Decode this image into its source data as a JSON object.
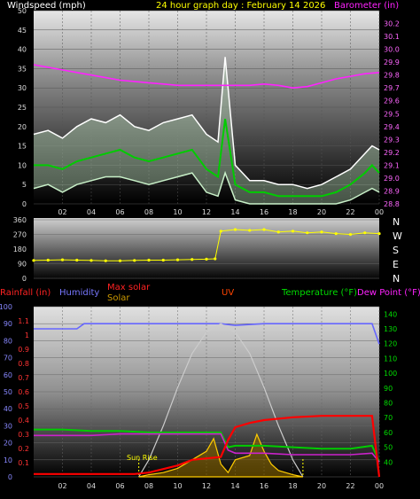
{
  "title": "24 hour graph day : February 14 2026",
  "header": {
    "windspeed_label": "Windspeed (mph)",
    "barometer_label": "Barometer (in)"
  },
  "direction_labels": [
    "N",
    "W",
    "S",
    "E",
    "N"
  ],
  "bottom_header": {
    "rainfall": "Rainfall (in)",
    "humidity": "Humidity",
    "max_solar": "Max solar",
    "solar": "Solar",
    "uv": "UV",
    "temperature": "Temperature (°F)",
    "dewpoint": "Dew Point (°F)"
  },
  "annotation": {
    "sunrise": "Sun Rise"
  },
  "colors": {
    "windspeed": "#ffffff",
    "gust_band": "#c8f0c8",
    "avg_wind": "#00cc00",
    "barometer": "#ff22ff",
    "direction": "#ffff00",
    "humidity": "#6666ff",
    "max_solar": "#cccccc",
    "solar": "#ffcc00",
    "rainfall": "#ff0000",
    "temperature": "#00cc00",
    "dewpoint": "#cc22cc",
    "title": "#ffff00"
  },
  "chart_data": [
    {
      "type": "line",
      "name": "wind_and_barometer",
      "x_ticks": [
        "02",
        "04",
        "06",
        "08",
        "10",
        "12",
        "14",
        "16",
        "18",
        "20",
        "22",
        "00"
      ],
      "x_range_hours": [
        0,
        24
      ],
      "y_left": {
        "label": "Windspeed (mph)",
        "ticks": [
          0,
          5,
          10,
          15,
          20,
          25,
          30,
          35,
          40,
          45,
          50
        ],
        "range": [
          0,
          50
        ]
      },
      "y_right": {
        "label": "Barometer (in)",
        "ticks": [
          28.8,
          28.9,
          29.0,
          29.1,
          29.2,
          29.3,
          29.4,
          29.5,
          29.6,
          29.7,
          29.8,
          29.9,
          30.0,
          30.1,
          30.2
        ],
        "range": [
          28.8,
          30.3
        ]
      },
      "series": [
        {
          "name": "Windspeed max",
          "x": [
            0,
            1,
            2,
            3,
            4,
            5,
            6,
            7,
            8,
            9,
            10,
            11,
            12,
            12.8,
            13.3,
            14,
            15,
            16,
            17,
            18,
            19,
            20,
            21,
            22,
            23,
            23.5,
            24
          ],
          "values": [
            18,
            19,
            17,
            20,
            22,
            21,
            23,
            20,
            19,
            21,
            22,
            23,
            18,
            16,
            38,
            10,
            6,
            6,
            5,
            5,
            4,
            5,
            7,
            9,
            13,
            15,
            14
          ]
        },
        {
          "name": "Windspeed avg",
          "x": [
            0,
            1,
            2,
            3,
            4,
            5,
            6,
            7,
            8,
            9,
            10,
            11,
            12,
            12.8,
            13.3,
            14,
            15,
            16,
            17,
            18,
            19,
            20,
            21,
            22,
            23,
            23.5,
            24
          ],
          "values": [
            10,
            10,
            9,
            11,
            12,
            13,
            14,
            12,
            11,
            12,
            13,
            14,
            9,
            7,
            22,
            5,
            3,
            3,
            2,
            2,
            2,
            2,
            3,
            5,
            8,
            10,
            8
          ]
        },
        {
          "name": "Windspeed min",
          "x": [
            0,
            1,
            2,
            3,
            4,
            5,
            6,
            7,
            8,
            9,
            10,
            11,
            12,
            12.8,
            13.3,
            14,
            15,
            16,
            17,
            18,
            19,
            20,
            21,
            22,
            23,
            23.5,
            24
          ],
          "values": [
            4,
            5,
            3,
            5,
            6,
            7,
            7,
            6,
            5,
            6,
            7,
            8,
            3,
            2,
            8,
            1,
            0,
            0,
            0,
            0,
            0,
            0,
            0,
            1,
            3,
            4,
            3
          ]
        },
        {
          "name": "Barometer",
          "x": [
            0,
            1,
            2,
            3,
            4,
            5,
            6,
            7,
            8,
            9,
            10,
            11,
            12,
            13,
            14,
            15,
            16,
            17,
            18,
            19,
            20,
            21,
            22,
            23,
            24
          ],
          "values": [
            29.88,
            29.86,
            29.84,
            29.82,
            29.8,
            29.78,
            29.76,
            29.75,
            29.74,
            29.73,
            29.72,
            29.72,
            29.72,
            29.72,
            29.72,
            29.72,
            29.73,
            29.72,
            29.7,
            29.71,
            29.74,
            29.77,
            29.79,
            29.81,
            29.82
          ]
        }
      ]
    },
    {
      "type": "scatter",
      "name": "wind_direction",
      "y_ticks": [
        0,
        90,
        180,
        270,
        360
      ],
      "y_range": [
        0,
        360
      ],
      "x_range_hours": [
        0,
        24
      ],
      "series": [
        {
          "name": "Direction",
          "x": [
            0,
            1,
            2,
            3,
            4,
            5,
            6,
            7,
            8,
            9,
            10,
            11,
            12,
            12.6,
            13,
            14,
            15,
            16,
            17,
            18,
            19,
            20,
            21,
            22,
            23,
            24
          ],
          "values": [
            110,
            112,
            114,
            112,
            110,
            108,
            108,
            110,
            112,
            112,
            114,
            116,
            118,
            120,
            290,
            300,
            295,
            300,
            285,
            290,
            280,
            285,
            275,
            270,
            280,
            275
          ]
        }
      ]
    },
    {
      "type": "line",
      "name": "rain_humidity_solar_temperature",
      "y_left_percent": {
        "ticks": [
          0,
          10,
          20,
          30,
          40,
          50,
          60,
          70,
          80,
          90,
          100
        ],
        "range": [
          0,
          100
        ]
      },
      "y_left_rain": {
        "label": "Rainfall (in)",
        "ticks": [
          0.1,
          0.2,
          0.3,
          0.4,
          0.5,
          0.6,
          0.7,
          0.8,
          0.9,
          1,
          1.1
        ],
        "range": [
          0,
          1.2
        ]
      },
      "y_right": {
        "label": "Temperature (°F)",
        "ticks": [
          40,
          50,
          60,
          70,
          80,
          90,
          100,
          110,
          120,
          130,
          140
        ],
        "range": [
          30,
          145
        ]
      },
      "series": [
        {
          "name": "Humidity",
          "x": [
            0,
            3,
            3.5,
            12,
            13,
            14,
            16,
            18,
            20,
            22,
            23.5,
            24
          ],
          "values": [
            87,
            87,
            90,
            90,
            90,
            89,
            90,
            90,
            90,
            90,
            90,
            78
          ]
        },
        {
          "name": "Rainfall",
          "x": [
            0,
            4,
            7,
            8,
            10,
            11,
            12,
            13,
            13.5,
            14,
            15,
            16,
            18,
            20,
            22,
            23.5,
            24
          ],
          "values": [
            0.02,
            0.02,
            0.02,
            0.03,
            0.08,
            0.12,
            0.13,
            0.14,
            0.26,
            0.35,
            0.38,
            0.4,
            0.42,
            0.43,
            0.43,
            0.43,
            0.0
          ]
        },
        {
          "name": "Max solar",
          "x": [
            7.3,
            8,
            9,
            10,
            11,
            12,
            13,
            14,
            15,
            16,
            17,
            18,
            18.7
          ],
          "values": [
            0,
            40,
            120,
            210,
            290,
            340,
            360,
            340,
            290,
            210,
            120,
            40,
            0
          ]
        },
        {
          "name": "Solar",
          "x": [
            7.3,
            8,
            9,
            10,
            11,
            12,
            12.5,
            13,
            13.5,
            14,
            15,
            15.5,
            16,
            16.5,
            17,
            18,
            18.7
          ],
          "values": [
            0,
            5,
            10,
            20,
            40,
            60,
            90,
            30,
            10,
            40,
            50,
            100,
            60,
            30,
            15,
            5,
            0
          ]
        },
        {
          "name": "Temperature",
          "x": [
            0,
            2,
            4,
            6,
            8,
            10,
            12,
            13,
            13.5,
            14,
            16,
            18,
            20,
            22,
            23.5,
            24
          ],
          "values": [
            62,
            62,
            61,
            61,
            60,
            60,
            60,
            60,
            50,
            51,
            51,
            50,
            49,
            49,
            51,
            40
          ]
        },
        {
          "name": "Dew Point",
          "x": [
            0,
            2,
            4,
            6,
            8,
            10,
            12,
            13,
            13.5,
            14,
            16,
            18,
            20,
            22,
            23.5,
            24
          ],
          "values": [
            58,
            58,
            58,
            59,
            59,
            59,
            59,
            59,
            48,
            46,
            46,
            45,
            45,
            45,
            46,
            40
          ]
        }
      ]
    }
  ]
}
